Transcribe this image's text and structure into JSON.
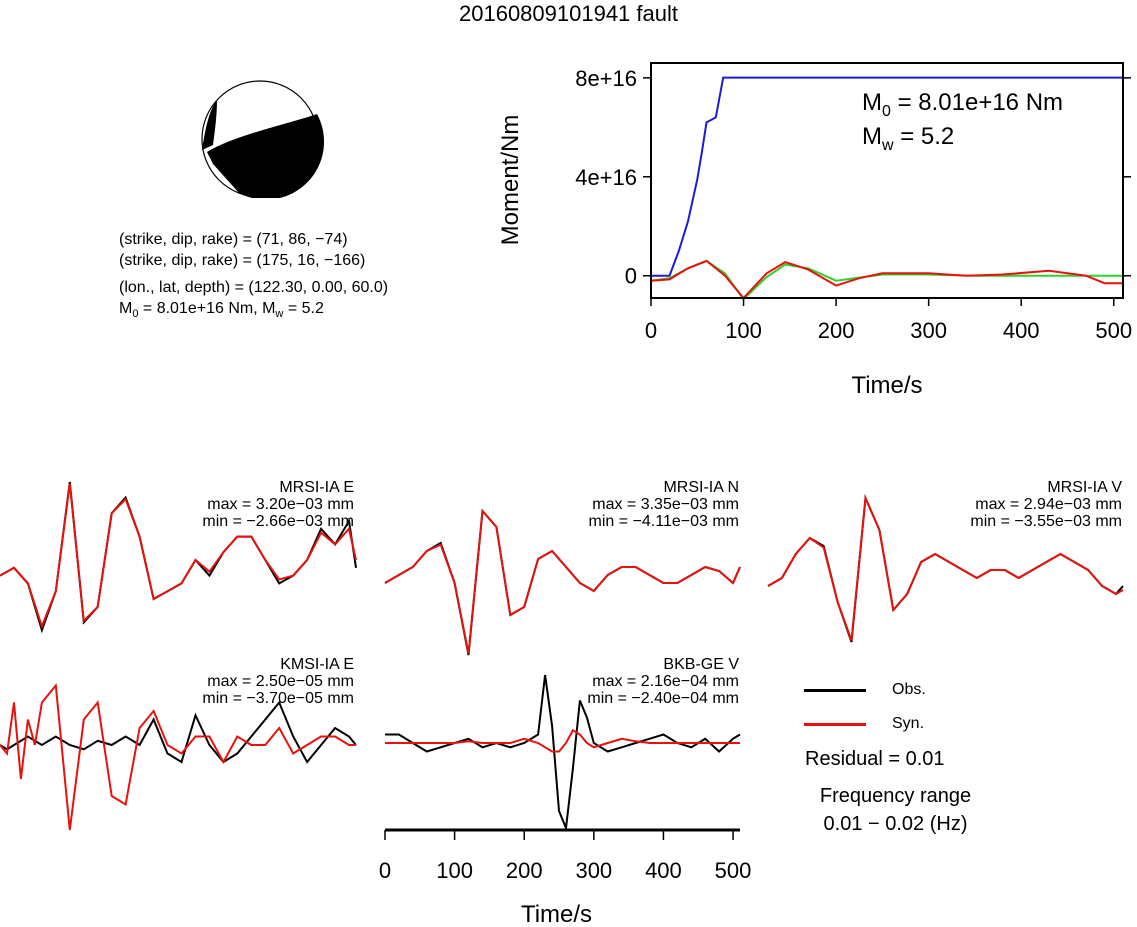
{
  "title": "20160809101941 fault",
  "info_lines": {
    "np1": "(strike, dip, rake) = (71, 86, −74)",
    "np2": "(strike, dip, rake) = (175, 16, −166)",
    "location": "(lon., lat, depth) = (122.30, 0.00, 60.0)",
    "m0_prefix": "M",
    "m0_sub": "0",
    "m0_rest": " = 8.01e+16 Nm, M",
    "mw_sub": "w",
    "mw_rest": " = 5.2"
  },
  "legend": {
    "obs_label": "Obs.",
    "syn_label": "Syn.",
    "obs_color": "#000000",
    "syn_color": "#e8120c"
  },
  "residual_text": "Residual = 0.01",
  "frequency": {
    "label": "Frequency range",
    "range": "0.01 − 0.02 (Hz)"
  },
  "chart_data": [
    {
      "type": "line",
      "id": "moment_rate",
      "ylabel": "Moment/Nm",
      "xlabel": "Time/s",
      "xlim": [
        0,
        510
      ],
      "ylim": [
        -9000000000000000.0,
        8.6e+16
      ],
      "x_ticks": [
        0,
        100,
        200,
        300,
        400,
        500
      ],
      "y_ticks": [
        {
          "value": 0,
          "label": "0"
        },
        {
          "value": 4e+16,
          "label": "4e+16"
        },
        {
          "value": 8e+16,
          "label": "8e+16"
        }
      ],
      "annotation": {
        "m0_prefix": "M",
        "m0_sub": "0",
        "m0_rest": " = 8.01e+16 Nm",
        "mw_prefix": "M",
        "mw_sub": "w",
        "mw_rest": " = 5.2"
      },
      "series": [
        {
          "color": "#1a1adf",
          "x": [
            0,
            20,
            30,
            40,
            50,
            55,
            60,
            65,
            70,
            75,
            78,
            80,
            510
          ],
          "y": [
            0,
            0,
            1e+16,
            2.2e+16,
            3.9e+16,
            5e+16,
            6.2e+16,
            6.3e+16,
            6.4e+16,
            7.4e+16,
            8.01e+16,
            8.01e+16,
            8.01e+16
          ]
        },
        {
          "color": "#2ed12e",
          "x": [
            0,
            20,
            40,
            60,
            80,
            100,
            125,
            145,
            170,
            200,
            250,
            300,
            350,
            400,
            450,
            510
          ],
          "y": [
            -2000000000000000.0,
            -1000000000000000.0,
            3000000000000000.0,
            6000000000000000.0,
            1000000000000000.0,
            -9500000000000000.0,
            -500000000000000.0,
            4500000000000000.0,
            3000000000000000.0,
            -2000000000000000.0,
            500000000000000.0,
            500000000000000.0,
            0.0,
            0.0,
            0.0,
            0.0
          ]
        },
        {
          "color": "#e8120c",
          "x": [
            0,
            20,
            40,
            60,
            80,
            100,
            125,
            145,
            170,
            200,
            225,
            250,
            300,
            340,
            380,
            430,
            470,
            490,
            510
          ],
          "y": [
            -2000000000000000.0,
            -1500000000000000.0,
            3000000000000000.0,
            6000000000000000.0,
            0.0,
            -9000000000000000.0,
            1000000000000000.0,
            5500000000000000.0,
            2500000000000000.0,
            -4000000000000000.0,
            -1000000000000000.0,
            1000000000000000.0,
            1000000000000000.0,
            0.0,
            500000000000000.0,
            2000000000000000.0,
            0.0,
            -3000000000000000.0,
            -3000000000000000.0
          ]
        }
      ]
    },
    {
      "type": "line",
      "id": "waveforms",
      "xlabel": "Time/s",
      "x_ticks": [
        0,
        100,
        200,
        300,
        400,
        500
      ],
      "time_range": [
        0,
        510
      ],
      "series_names": [
        "Obs.",
        "Syn."
      ],
      "panels": [
        {
          "station": "MRSI-IA E",
          "max_text": "max = 3.20e−03 mm",
          "min_text": "min = −2.66e−03 mm",
          "t": [
            0,
            20,
            40,
            60,
            80,
            100,
            120,
            140,
            160,
            180,
            200,
            220,
            240,
            260,
            280,
            300,
            320,
            340,
            360,
            380,
            400,
            420,
            440,
            460,
            480,
            500,
            510
          ],
          "obs": [
            -0.2,
            -0.1,
            -0.3,
            -0.9,
            -0.4,
            1.0,
            -0.8,
            -0.6,
            0.6,
            0.8,
            0.3,
            -0.5,
            -0.4,
            -0.3,
            0.0,
            -0.2,
            0.1,
            0.3,
            0.3,
            0.0,
            -0.3,
            -0.2,
            0.0,
            0.4,
            0.2,
            0.5,
            -0.1
          ],
          "syn": [
            -0.2,
            -0.1,
            -0.3,
            -0.85,
            -0.4,
            0.98,
            -0.78,
            -0.6,
            0.6,
            0.78,
            0.3,
            -0.5,
            -0.4,
            -0.3,
            0.0,
            -0.15,
            0.1,
            0.3,
            0.3,
            0.0,
            -0.25,
            -0.2,
            0.0,
            0.35,
            0.2,
            0.4,
            0.0
          ]
        },
        {
          "station": "MRSI-IA N",
          "max_text": "max = 3.35e−03 mm",
          "min_text": "min = −4.11e−03 mm",
          "t": [
            0,
            20,
            40,
            60,
            80,
            100,
            120,
            140,
            160,
            180,
            200,
            220,
            240,
            260,
            280,
            300,
            320,
            340,
            360,
            380,
            400,
            420,
            440,
            460,
            480,
            500,
            510
          ],
          "obs": [
            -0.1,
            0.0,
            0.1,
            0.3,
            0.4,
            -0.1,
            -1.0,
            0.8,
            0.6,
            -0.5,
            -0.4,
            0.2,
            0.3,
            0.1,
            -0.1,
            -0.2,
            0.0,
            0.1,
            0.1,
            0.0,
            -0.1,
            -0.1,
            0.0,
            0.1,
            0.05,
            -0.1,
            0.1
          ],
          "syn": [
            -0.1,
            0.0,
            0.1,
            0.3,
            0.38,
            -0.1,
            -0.98,
            0.8,
            0.6,
            -0.5,
            -0.4,
            0.2,
            0.3,
            0.1,
            -0.1,
            -0.2,
            0.0,
            0.1,
            0.1,
            0.0,
            -0.1,
            -0.1,
            0.0,
            0.1,
            0.05,
            -0.1,
            0.1
          ]
        },
        {
          "station": "MRSI-IA V",
          "max_text": "max = 2.94e−03 mm",
          "min_text": "min = −3.55e−03 mm",
          "t": [
            0,
            20,
            40,
            60,
            80,
            100,
            120,
            140,
            160,
            180,
            200,
            220,
            240,
            260,
            280,
            300,
            320,
            340,
            360,
            380,
            400,
            420,
            440,
            460,
            480,
            500,
            510
          ],
          "obs": [
            -0.2,
            -0.1,
            0.2,
            0.4,
            0.3,
            -0.4,
            -0.9,
            0.9,
            0.5,
            -0.5,
            -0.3,
            0.1,
            0.2,
            0.1,
            0.0,
            -0.1,
            0.0,
            0.0,
            -0.1,
            0.0,
            0.1,
            0.2,
            0.1,
            0.0,
            -0.2,
            -0.3,
            -0.2
          ],
          "syn": [
            -0.2,
            -0.1,
            0.2,
            0.4,
            0.28,
            -0.4,
            -0.88,
            0.9,
            0.5,
            -0.5,
            -0.3,
            0.1,
            0.2,
            0.1,
            0.0,
            -0.1,
            0.0,
            0.0,
            -0.1,
            0.0,
            0.1,
            0.2,
            0.1,
            0.0,
            -0.2,
            -0.3,
            -0.25
          ]
        },
        {
          "station": "KMSI-IA E",
          "max_text": "max = 2.50e−05 mm",
          "min_text": "min = −3.70e−05 mm",
          "t": [
            0,
            10,
            20,
            30,
            40,
            50,
            60,
            80,
            100,
            120,
            140,
            160,
            180,
            200,
            220,
            240,
            260,
            280,
            300,
            320,
            340,
            360,
            380,
            400,
            420,
            440,
            460,
            480,
            500,
            510
          ],
          "obs": [
            0.0,
            -0.05,
            0.0,
            0.05,
            0.1,
            0.05,
            0.0,
            0.1,
            0.0,
            -0.05,
            0.05,
            0.0,
            0.1,
            0.0,
            0.3,
            -0.1,
            -0.2,
            0.35,
            0.0,
            -0.2,
            -0.1,
            0.1,
            0.3,
            0.5,
            0.1,
            -0.2,
            0.0,
            0.2,
            0.1,
            0.0
          ],
          "syn": [
            0.0,
            -0.1,
            0.5,
            -0.4,
            0.3,
            0.0,
            0.5,
            0.7,
            -1.0,
            0.3,
            0.5,
            -0.6,
            -0.7,
            0.2,
            0.4,
            0.0,
            -0.1,
            0.1,
            0.1,
            -0.2,
            0.1,
            0.0,
            0.0,
            0.2,
            -0.1,
            0.0,
            0.1,
            0.1,
            0.0,
            0.0
          ]
        },
        {
          "station": "BKB-GE V",
          "max_text": "max = 2.16e−04 mm",
          "min_text": "min = −2.40e−04 mm",
          "t": [
            0,
            20,
            40,
            60,
            80,
            100,
            120,
            140,
            160,
            180,
            200,
            220,
            230,
            240,
            250,
            260,
            270,
            280,
            290,
            300,
            320,
            340,
            360,
            380,
            400,
            420,
            440,
            460,
            480,
            500,
            510
          ],
          "obs": [
            0.1,
            0.1,
            0.0,
            -0.1,
            -0.05,
            0.0,
            0.05,
            -0.05,
            0.0,
            -0.05,
            0.0,
            0.1,
            0.8,
            0.2,
            -0.8,
            -1.0,
            -0.3,
            0.5,
            0.3,
            0.0,
            -0.1,
            -0.05,
            0.0,
            0.05,
            0.1,
            0.0,
            -0.05,
            0.05,
            -0.1,
            0.05,
            0.1
          ],
          "syn": [
            0.0,
            0.0,
            0.0,
            0.0,
            0.0,
            0.0,
            0.02,
            0.0,
            0.0,
            0.0,
            0.05,
            0.0,
            -0.05,
            -0.1,
            -0.1,
            0.0,
            0.15,
            0.1,
            0.0,
            -0.05,
            0.0,
            0.05,
            0.02,
            0.0,
            0.0,
            0.0,
            0.0,
            0.0,
            0.0,
            0.0,
            0.0
          ]
        }
      ]
    }
  ]
}
